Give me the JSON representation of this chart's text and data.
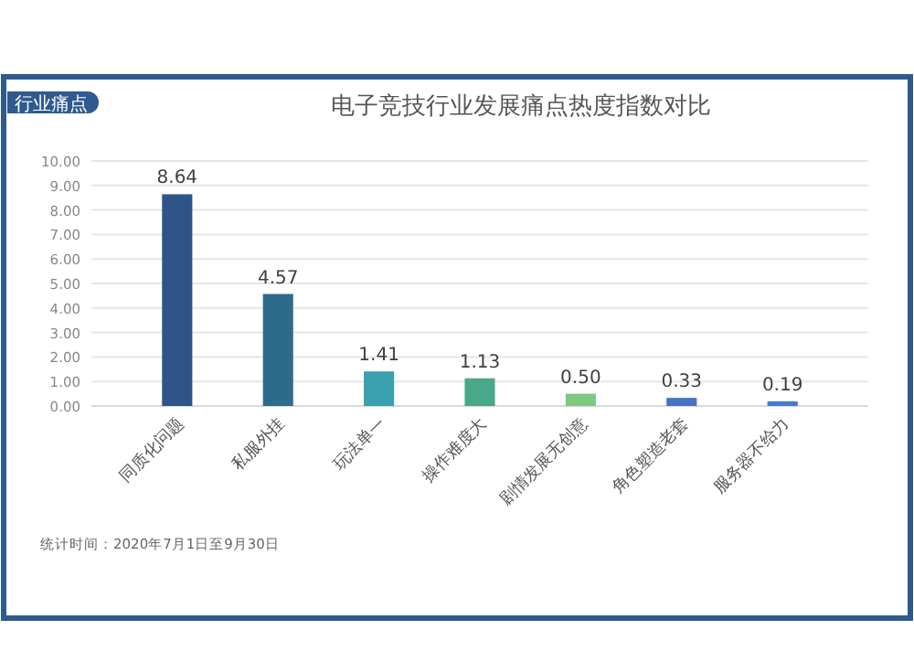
{
  "chart_data": {
    "type": "bar",
    "title": "电子竞技行业发展痛点热度指数对比",
    "categories": [
      "同质化问题",
      "私服外挂",
      "玩法单一",
      "操作难度大",
      "剧情发展无创意",
      "角色塑造老套",
      "服务器不给力"
    ],
    "values": [
      8.64,
      4.57,
      1.41,
      1.13,
      0.5,
      0.33,
      0.19
    ],
    "colors": [
      "#2f5488",
      "#2e6b8a",
      "#3aa0ad",
      "#4aa88a",
      "#7cc97f",
      "#4472c4",
      "#4a78cc"
    ],
    "ylim": [
      0,
      10
    ],
    "yticks": [
      {
        "value": 0,
        "label": "0.00"
      },
      {
        "value": 1,
        "label": "1.00"
      },
      {
        "value": 2,
        "label": "2.00"
      },
      {
        "value": 3,
        "label": "3.00"
      },
      {
        "value": 4,
        "label": "4.00"
      },
      {
        "value": 5,
        "label": "5.00"
      },
      {
        "value": 6,
        "label": "6.00"
      },
      {
        "value": 7,
        "label": "7.00"
      },
      {
        "value": 8,
        "label": "8.00"
      },
      {
        "value": 9,
        "label": "9.00"
      },
      {
        "value": 10,
        "label": "10.00"
      }
    ],
    "grid": "y",
    "value_labels": [
      "8.64",
      "4.57",
      "1.41",
      "1.13",
      "0.50",
      "0.33",
      "0.19"
    ],
    "annotations": [
      "行业痛点",
      "统计时间：2020年7月1日至9月30日"
    ]
  }
}
